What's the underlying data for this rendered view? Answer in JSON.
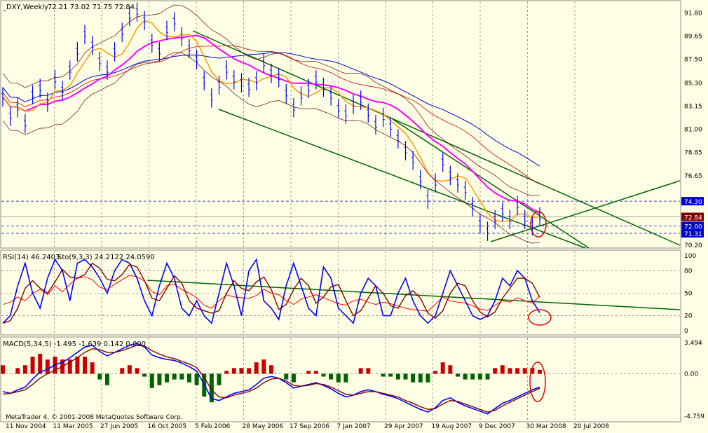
{
  "chart_data": {
    "type": "line",
    "symbol": "_DXY,Weekly",
    "ohlc": "72.21 73.02 71.75 72.84",
    "price_ticks": [
      "91.80",
      "89.65",
      "87.50",
      "85.30",
      "83.15",
      "81.00",
      "78.85",
      "76.65",
      "74.30",
      "72.84",
      "72.00",
      "71.31",
      "70.20"
    ],
    "price_ylim": [
      70.2,
      92.5
    ],
    "levels": {
      "resistance": 74.3,
      "last": 72.84,
      "support": 72.0,
      "low": 71.31
    },
    "x_labels": [
      "11 Nov 2004",
      "11 Mar 2005",
      "27 Jun 2005",
      "16 Oct 2005",
      "5 Feb 2006",
      "28 May 2006",
      "17 Sep 2006",
      "7 Jan 2007",
      "29 Apr 2007",
      "19 Aug 2007",
      "9 Dec 2007",
      "30 Mar 2008",
      "20 Jul 2008"
    ],
    "price_series": [
      84.0,
      82.2,
      83.0,
      81.5,
      84.2,
      84.8,
      83.5,
      85.6,
      84.6,
      86.5,
      88.2,
      89.8,
      88.8,
      87.3,
      86.5,
      88.2,
      90.0,
      91.5,
      91.9,
      91.1,
      89.0,
      88.2,
      90.2,
      91.0,
      89.6,
      88.5,
      87.5,
      85.5,
      83.9,
      85.1,
      86.5,
      85.6,
      85.3,
      84.9,
      85.5,
      87.1,
      86.2,
      85.8,
      84.3,
      83.0,
      84.1,
      84.8,
      85.6,
      84.9,
      84.1,
      82.9,
      82.4,
      83.3,
      83.7,
      82.5,
      81.4,
      82.1,
      81.2,
      80.1,
      79.0,
      78.1,
      76.3,
      74.5,
      76.0,
      77.9,
      76.7,
      76.0,
      75.3,
      73.8,
      72.2,
      71.5,
      72.6,
      73.3,
      72.6,
      73.9,
      72.6,
      72.0,
      72.84
    ],
    "rsi": {
      "label": "RSI(14) 46.2403",
      "ticks": [
        "100",
        "80",
        "50",
        "20",
        "0"
      ],
      "values": [
        35,
        38,
        45,
        40,
        50,
        55,
        48,
        60,
        52,
        62,
        70,
        72,
        68,
        58,
        55,
        62,
        68,
        74,
        72,
        66,
        52,
        48,
        60,
        62,
        55,
        50,
        44,
        34,
        30,
        40,
        48,
        45,
        44,
        43,
        47,
        55,
        50,
        48,
        40,
        35,
        42,
        45,
        48,
        44,
        40,
        36,
        34,
        40,
        42,
        38,
        35,
        38,
        36,
        33,
        30,
        28,
        27,
        26,
        35,
        45,
        40,
        38,
        37,
        33,
        29,
        27,
        34,
        40,
        38,
        44,
        40,
        37,
        46
      ]
    },
    "stochastic": {
      "label": "Sto(9,3,3) 24.2122 24.0590",
      "values": [
        10,
        20,
        60,
        90,
        50,
        30,
        70,
        95,
        80,
        40,
        90,
        95,
        85,
        70,
        50,
        80,
        95,
        90,
        70,
        40,
        20,
        60,
        90,
        70,
        30,
        20,
        40,
        20,
        10,
        50,
        90,
        60,
        20,
        80,
        95,
        40,
        30,
        15,
        60,
        90,
        60,
        30,
        20,
        85,
        70,
        30,
        20,
        10,
        50,
        70,
        60,
        20,
        20,
        50,
        70,
        40,
        20,
        10,
        20,
        50,
        80,
        60,
        40,
        20,
        15,
        20,
        40,
        70,
        60,
        80,
        70,
        40,
        24
      ]
    },
    "macd": {
      "label": "MACD(5,34,5) -1.495 -1.639 0.142 0.000",
      "ticks": [
        "3.494",
        "0.00",
        "-4.759"
      ],
      "macd_values": [
        -2.0,
        -2.2,
        -1.8,
        -1.5,
        -0.6,
        0.2,
        0.5,
        1.0,
        1.3,
        1.8,
        2.4,
        3.0,
        3.2,
        2.5,
        2.0,
        2.4,
        2.8,
        3.2,
        3.4,
        3.0,
        2.1,
        1.8,
        1.6,
        1.5,
        1.2,
        0.8,
        0.3,
        -1.2,
        -2.8,
        -3.0,
        -2.6,
        -2.2,
        -2.0,
        -1.8,
        -1.2,
        -0.5,
        -0.3,
        -0.5,
        -1.0,
        -1.6,
        -1.4,
        -1.2,
        -1.0,
        -1.3,
        -1.7,
        -2.2,
        -2.6,
        -2.4,
        -2.0,
        -1.8,
        -2.0,
        -2.3,
        -2.5,
        -2.8,
        -3.2,
        -3.6,
        -4.0,
        -4.3,
        -3.8,
        -3.0,
        -2.7,
        -3.2,
        -3.6,
        -3.9,
        -4.2,
        -4.5,
        -3.9,
        -3.3,
        -3.0,
        -2.6,
        -2.2,
        -1.8,
        -1.5
      ],
      "signal_values": [
        -2.3,
        -2.2,
        -2.0,
        -1.8,
        -1.2,
        -0.5,
        0.0,
        0.4,
        0.8,
        1.3,
        1.8,
        2.4,
        2.8,
        2.7,
        2.4,
        2.4,
        2.6,
        2.9,
        3.2,
        3.1,
        2.6,
        2.2,
        1.9,
        1.7,
        1.4,
        1.1,
        0.7,
        -0.4,
        -1.8,
        -2.6,
        -2.7,
        -2.4,
        -2.2,
        -2.0,
        -1.6,
        -1.0,
        -0.6,
        -0.5,
        -0.8,
        -1.3,
        -1.4,
        -1.3,
        -1.1,
        -1.2,
        -1.5,
        -1.9,
        -2.3,
        -2.4,
        -2.2,
        -2.0,
        -2.0,
        -2.2,
        -2.4,
        -2.6,
        -3.0,
        -3.3,
        -3.7,
        -4.0,
        -3.9,
        -3.4,
        -3.0,
        -3.1,
        -3.4,
        -3.7,
        -4.0,
        -4.3,
        -4.1,
        -3.6,
        -3.2,
        -2.8,
        -2.4,
        -2.0,
        -1.64
      ]
    }
  },
  "footer": {
    "copyright": "MetaTrader 4, © 2001-2008 MetaQuotes Software Corp."
  },
  "colors": {
    "price": "#0000ff",
    "ma_fast": "#ff9900",
    "ma_mid": "#ff00ff",
    "ma_slow": "#0000cc",
    "trend": "#006400",
    "stoch_k": "#0000ff",
    "stoch_d": "#800000",
    "rsi": "#ff0000",
    "hist_pos": "#cc0000",
    "hist_neg": "#006400"
  }
}
